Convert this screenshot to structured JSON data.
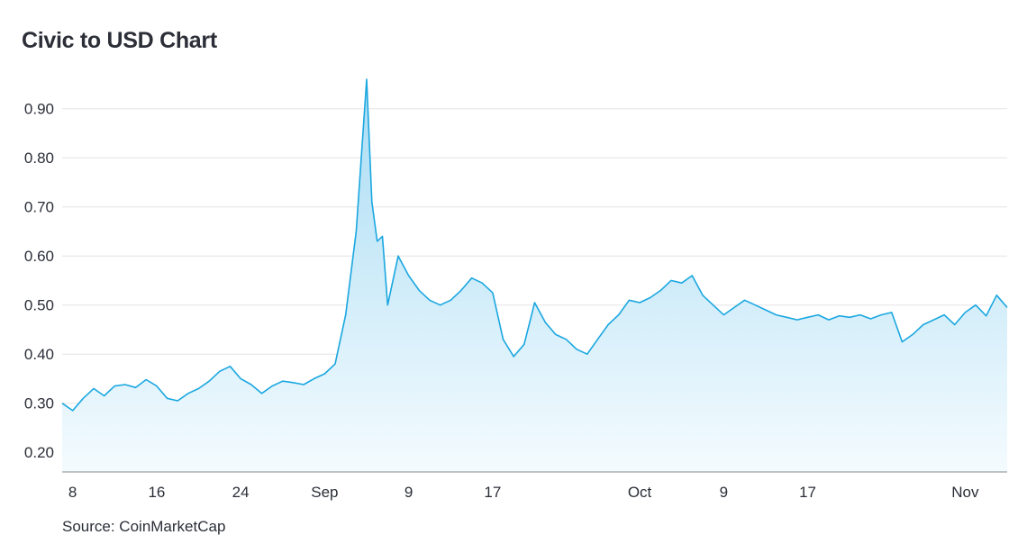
{
  "title": "Civic to USD Chart",
  "source": "Source: CoinMarketCap",
  "colors": {
    "line": "#1aa7e0",
    "fill_top": "#a9dcf4",
    "fill_bottom": "#f4fbfe",
    "grid": "#e4e4e4",
    "axis": "#8a8a8a"
  },
  "chart_data": {
    "type": "area",
    "title": "Civic to USD Chart",
    "xlabel": "",
    "ylabel": "",
    "ylim": [
      0.16,
      0.96
    ],
    "xlim": [
      "2023-08-07",
      "2023-11-05"
    ],
    "yticks": [
      0.9,
      0.8,
      0.7,
      0.6,
      0.5,
      0.4,
      0.3,
      0.2
    ],
    "yticklabels": [
      "0.90",
      "0.80",
      "0.70",
      "0.60",
      "0.50",
      "0.40",
      "0.30",
      "0.20"
    ],
    "xticks": [
      "2023-08-08",
      "2023-08-16",
      "2023-08-24",
      "2023-09-01",
      "2023-09-09",
      "2023-09-17",
      "2023-10-01",
      "2023-10-09",
      "2023-10-17",
      "2023-11-01"
    ],
    "xticklabels": [
      "8",
      "16",
      "24",
      "Sep",
      "9",
      "17",
      "Oct",
      "9",
      "17",
      "Nov"
    ],
    "grid": true,
    "series": [
      {
        "x": [
          "2023-08-07",
          "2023-08-08",
          "2023-08-09",
          "2023-08-10",
          "2023-08-11",
          "2023-08-12",
          "2023-08-13",
          "2023-08-14",
          "2023-08-15",
          "2023-08-16",
          "2023-08-17",
          "2023-08-18",
          "2023-08-19",
          "2023-08-20",
          "2023-08-21",
          "2023-08-22",
          "2023-08-23",
          "2023-08-24",
          "2023-08-25",
          "2023-08-26",
          "2023-08-27",
          "2023-08-28",
          "2023-08-29",
          "2023-08-30",
          "2023-08-31",
          "2023-09-01",
          "2023-09-02",
          "2023-09-03",
          "2023-09-04",
          "2023-09-05",
          "2023-09-05",
          "2023-09-06",
          "2023-09-06",
          "2023-09-07",
          "2023-09-08",
          "2023-09-09",
          "2023-09-10",
          "2023-09-11",
          "2023-09-12",
          "2023-09-13",
          "2023-09-14",
          "2023-09-15",
          "2023-09-16",
          "2023-09-17",
          "2023-09-18",
          "2023-09-19",
          "2023-09-20",
          "2023-09-21",
          "2023-09-22",
          "2023-09-23",
          "2023-09-24",
          "2023-09-25",
          "2023-09-26",
          "2023-09-27",
          "2023-09-28",
          "2023-09-29",
          "2023-09-30",
          "2023-10-01",
          "2023-10-02",
          "2023-10-03",
          "2023-10-04",
          "2023-10-05",
          "2023-10-06",
          "2023-10-07",
          "2023-10-08",
          "2023-10-09",
          "2023-10-10",
          "2023-10-11",
          "2023-10-12",
          "2023-10-13",
          "2023-10-14",
          "2023-10-15",
          "2023-10-16",
          "2023-10-17",
          "2023-10-18",
          "2023-10-19",
          "2023-10-20",
          "2023-10-21",
          "2023-10-22",
          "2023-10-23",
          "2023-10-24",
          "2023-10-25",
          "2023-10-26",
          "2023-10-27",
          "2023-10-28",
          "2023-10-29",
          "2023-10-30",
          "2023-10-31",
          "2023-11-01",
          "2023-11-02",
          "2023-11-03",
          "2023-11-04",
          "2023-11-05"
        ],
        "y": [
          0.3,
          0.285,
          0.31,
          0.33,
          0.315,
          0.335,
          0.338,
          0.332,
          0.348,
          0.335,
          0.31,
          0.305,
          0.32,
          0.33,
          0.345,
          0.365,
          0.375,
          0.35,
          0.338,
          0.32,
          0.335,
          0.345,
          0.342,
          0.338,
          0.35,
          0.36,
          0.38,
          0.48,
          0.65,
          0.96,
          0.71,
          0.63,
          0.64,
          0.5,
          0.6,
          0.56,
          0.53,
          0.51,
          0.5,
          0.51,
          0.53,
          0.555,
          0.545,
          0.525,
          0.43,
          0.395,
          0.42,
          0.505,
          0.465,
          0.44,
          0.43,
          0.41,
          0.4,
          0.43,
          0.46,
          0.48,
          0.51,
          0.505,
          0.515,
          0.53,
          0.55,
          0.545,
          0.56,
          0.52,
          0.5,
          0.48,
          0.495,
          0.51,
          0.5,
          0.49,
          0.48,
          0.475,
          0.47,
          0.475,
          0.48,
          0.47,
          0.478,
          0.475,
          0.48,
          0.472,
          0.48,
          0.485,
          0.425,
          0.44,
          0.46,
          0.47,
          0.48,
          0.46,
          0.485,
          0.5,
          0.478,
          0.52,
          0.495
        ]
      }
    ]
  }
}
